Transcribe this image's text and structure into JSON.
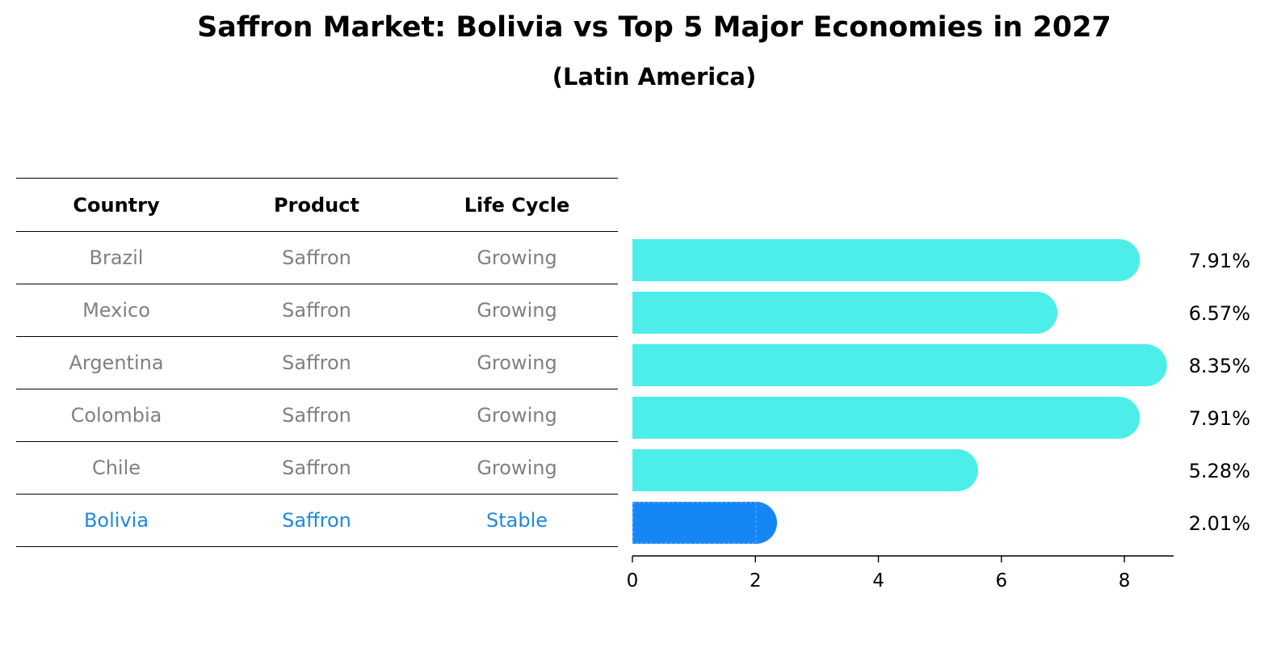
{
  "title": "Saffron Market: Bolivia vs Top 5 Major Economies in 2027",
  "subtitle": "(Latin America)",
  "table": {
    "headers": [
      "Country",
      "Product",
      "Life Cycle"
    ],
    "rows": [
      [
        "Brazil",
        "Saffron",
        "Growing"
      ],
      [
        "Mexico",
        "Saffron",
        "Growing"
      ],
      [
        "Argentina",
        "Saffron",
        "Growing"
      ],
      [
        "Colombia",
        "Saffron",
        "Growing"
      ],
      [
        "Chile",
        "Saffron",
        "Growing"
      ],
      [
        "Bolivia",
        "Saffron",
        "Stable"
      ]
    ],
    "highlight_row": 5,
    "highlight_color": "#1f88e0",
    "text_color": "#808080"
  },
  "chart_data": {
    "type": "bar",
    "orientation": "horizontal",
    "categories": [
      "Brazil",
      "Mexico",
      "Argentina",
      "Colombia",
      "Chile",
      "Bolivia"
    ],
    "values": [
      7.91,
      6.57,
      8.35,
      7.91,
      5.28,
      2.01
    ],
    "value_labels": [
      "7.91%",
      "6.57%",
      "8.35%",
      "7.91%",
      "5.28%",
      "2.01%"
    ],
    "xlim": [
      0,
      8.8
    ],
    "xticks": [
      0,
      2,
      4,
      6,
      8
    ],
    "xtick_labels": [
      "0",
      "2",
      "4",
      "6",
      "8"
    ],
    "bar_color": "#4deeea",
    "highlight_color": "#1786f5",
    "highlight_index": 5,
    "grid": false
  }
}
